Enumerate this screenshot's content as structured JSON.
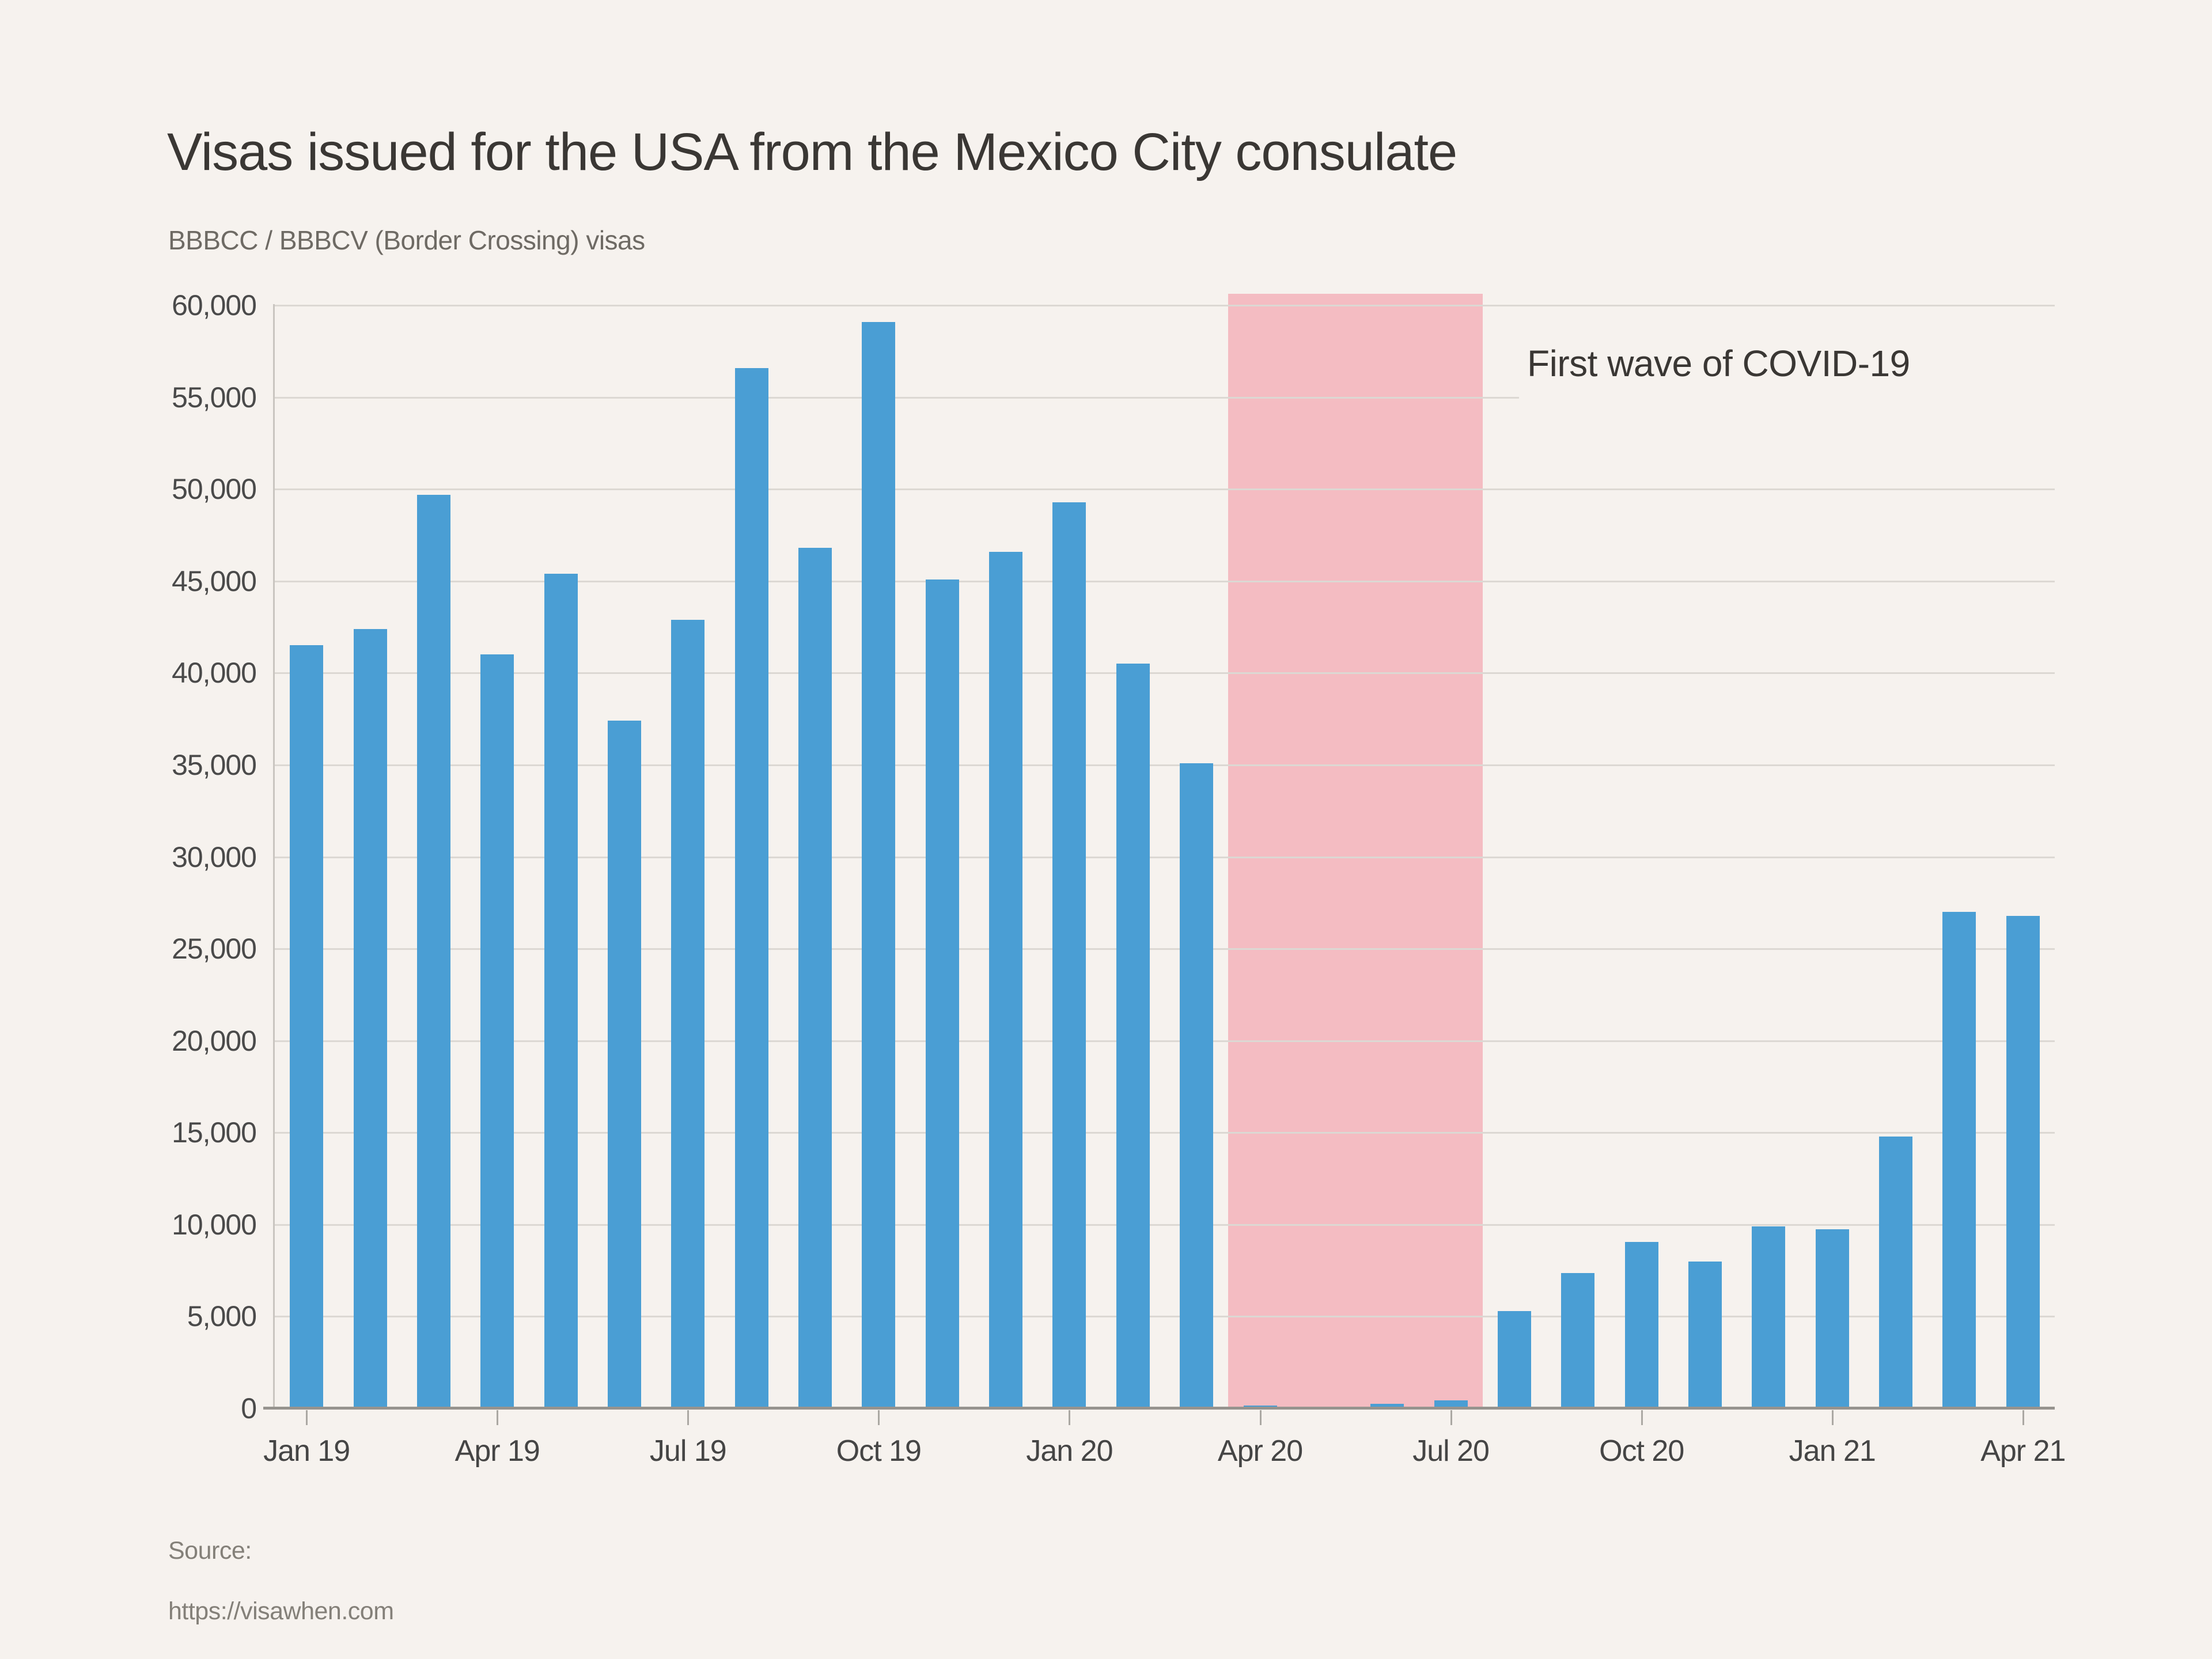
{
  "header": {
    "title": "Visas issued for the USA from the Mexico City consulate",
    "subtitle": "BBBCC / BBBCV (Border Crossing) visas"
  },
  "annotation": {
    "label": "First wave of COVID-19"
  },
  "footer": {
    "source_label": "Source:",
    "source_url": "https://visawhen.com"
  },
  "colors": {
    "background": "#F6F2EE",
    "bar": "#4A9ED4",
    "highlight": "#F4BCC2",
    "gridline": "#DCD8D3",
    "axis": "#96938E",
    "text_dark": "#3A3734",
    "text_gray": "#6E6A64"
  },
  "chart_data": {
    "type": "bar",
    "title": "Visas issued for the USA from the Mexico City consulate",
    "subtitle": "BBBCC / BBBCV (Border Crossing) visas",
    "xlabel": "",
    "ylabel": "",
    "ylim": [
      0,
      60000
    ],
    "ytick_step": 5000,
    "grid": true,
    "legend": false,
    "categories": [
      "Jan 19",
      "Feb 19",
      "Mar 19",
      "Apr 19",
      "May 19",
      "Jun 19",
      "Jul 19",
      "Aug 19",
      "Sep 19",
      "Oct 19",
      "Nov 19",
      "Dec 19",
      "Jan 20",
      "Feb 20",
      "Mar 20",
      "Apr 20",
      "May 20",
      "Jun 20",
      "Jul 20",
      "Aug 20",
      "Sep 20",
      "Oct 20",
      "Nov 20",
      "Dec 20",
      "Jan 21",
      "Feb 21",
      "Mar 21",
      "Apr 21"
    ],
    "values": [
      41500,
      42400,
      49700,
      41000,
      45400,
      37400,
      42900,
      56600,
      46800,
      59100,
      45100,
      46600,
      49300,
      40500,
      35100,
      150,
      100,
      250,
      450,
      5300,
      7350,
      9050,
      8000,
      9900,
      9750,
      14800,
      27000,
      26800
    ],
    "x_tick_labels": [
      "Jan 19",
      "Apr 19",
      "Jul 19",
      "Oct 19",
      "Jan 20",
      "Apr 20",
      "Jul 20",
      "Oct 20",
      "Jan 21",
      "Apr 21"
    ],
    "highlight_range": {
      "from": "Apr 20",
      "to": "Jul 20",
      "label": "First wave of COVID-19",
      "color": "#F4BCC2"
    }
  }
}
